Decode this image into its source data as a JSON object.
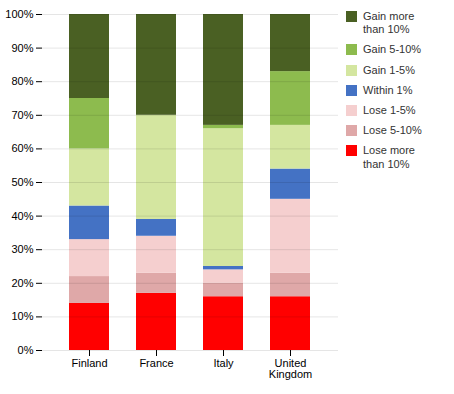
{
  "chart_data": {
    "type": "bar",
    "stacked": true,
    "categories": [
      "Finland",
      "France",
      "Italy",
      "United\nKingdom"
    ],
    "series": [
      {
        "name": "Lose more\nthan 10%",
        "color": "#FF0000",
        "values": [
          14,
          17,
          16,
          16
        ]
      },
      {
        "name": "Lose 5-10%",
        "color": "#DFA8A8",
        "values": [
          8,
          6,
          4,
          7
        ]
      },
      {
        "name": "Lose 1-5%",
        "color": "#F5CFCF",
        "values": [
          11,
          11,
          4,
          22
        ]
      },
      {
        "name": "Within 1%",
        "color": "#4472C4",
        "values": [
          10,
          5,
          1,
          9
        ]
      },
      {
        "name": "Gain 1-5%",
        "color": "#D4E6A0",
        "values": [
          17,
          31,
          41,
          13
        ]
      },
      {
        "name": "Gain 5-10%",
        "color": "#8DBB4E",
        "values": [
          15,
          0,
          1,
          16
        ]
      },
      {
        "name": "Gain more\nthan 10%",
        "color": "#4A6023",
        "values": [
          25,
          30,
          33,
          17
        ]
      }
    ],
    "ylim": [
      0,
      100
    ],
    "yticks": [
      {
        "value": 0,
        "label": "0%"
      },
      {
        "value": 10,
        "label": "10%"
      },
      {
        "value": 20,
        "label": "20%"
      },
      {
        "value": 30,
        "label": "30%"
      },
      {
        "value": 40,
        "label": "40%"
      },
      {
        "value": 50,
        "label": "50%"
      },
      {
        "value": 60,
        "label": "60%"
      },
      {
        "value": 70,
        "label": "70%"
      },
      {
        "value": 80,
        "label": "80%"
      },
      {
        "value": 90,
        "label": "90%"
      },
      {
        "value": 100,
        "label": "100%"
      }
    ],
    "grid": true,
    "legend": "upper right"
  }
}
